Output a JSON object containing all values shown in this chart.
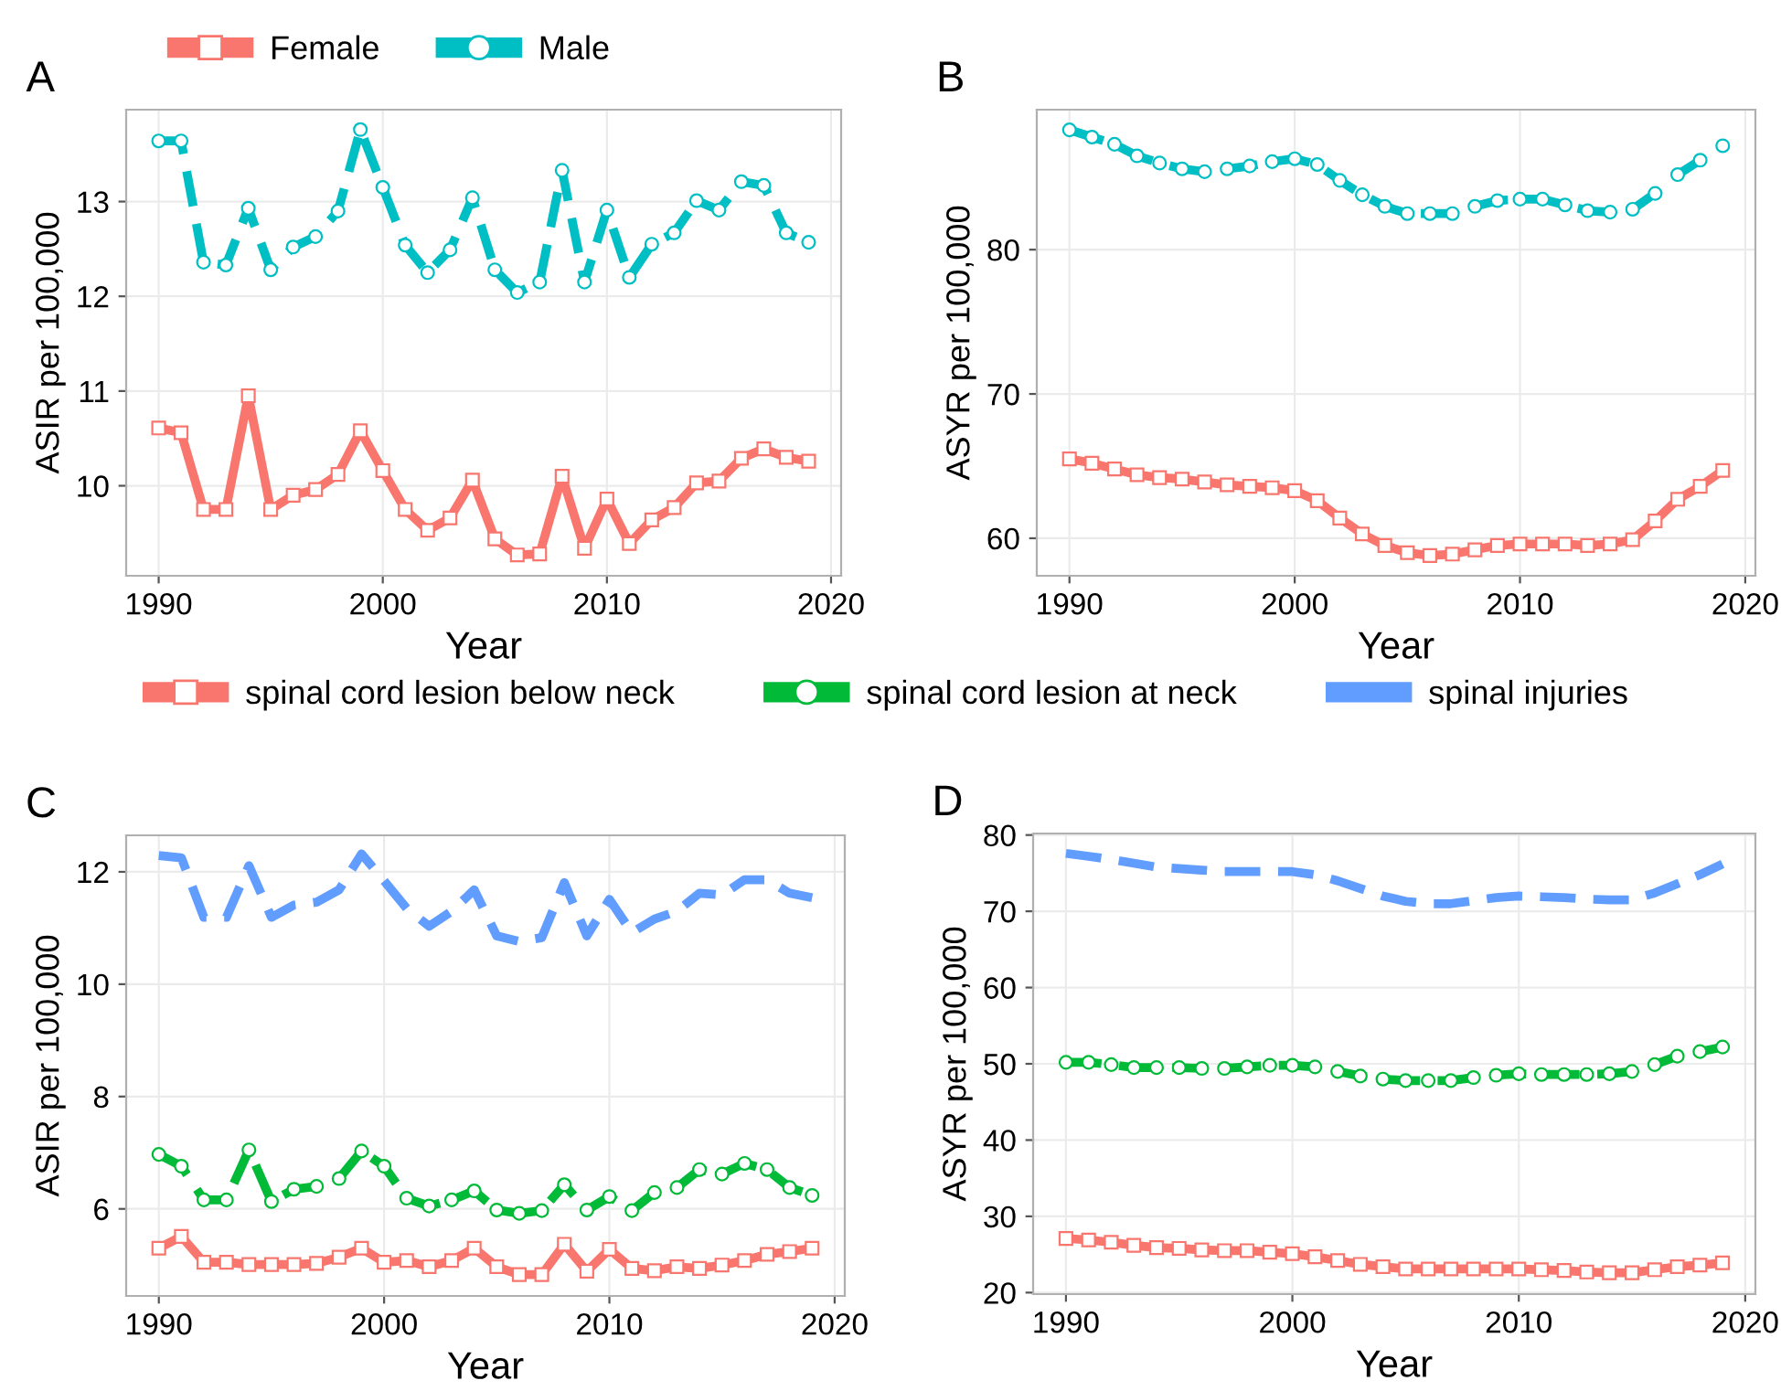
{
  "chart_data": [
    {
      "type": "line",
      "title": "A",
      "xlabel": "Year",
      "ylabel": "ASIR per 100,000",
      "xlim": [
        1988.55,
        2020.45
      ],
      "xticks": [
        1990,
        2000,
        2010,
        2020
      ],
      "ylim": [
        9.05,
        13.97
      ],
      "yticks": [
        10,
        11,
        12,
        13
      ],
      "grid": true,
      "legend": "top left",
      "x": [
        1990,
        1991,
        1992,
        1993,
        1994,
        1995,
        1996,
        1997,
        1998,
        1999,
        2000,
        2001,
        2002,
        2003,
        2004,
        2005,
        2006,
        2007,
        2008,
        2009,
        2010,
        2011,
        2012,
        2013,
        2014,
        2015,
        2016,
        2017,
        2018,
        2019
      ],
      "series": [
        {
          "name": "Female",
          "color": "#f8766d",
          "marker": "square",
          "line_style": "solid",
          "values": [
            10.61,
            10.56,
            9.75,
            9.75,
            10.95,
            9.75,
            9.9,
            9.96,
            10.12,
            10.58,
            10.16,
            9.75,
            9.53,
            9.66,
            10.06,
            9.44,
            9.27,
            9.28,
            10.1,
            9.34,
            9.86,
            9.39,
            9.64,
            9.77,
            10.03,
            10.05,
            10.29,
            10.39,
            10.3,
            10.26
          ]
        },
        {
          "name": "Male",
          "color": "#00bfc4",
          "marker": "circle",
          "line_style": "dashed",
          "values": [
            13.64,
            13.64,
            12.36,
            12.33,
            12.93,
            12.28,
            12.52,
            12.63,
            12.9,
            13.76,
            13.15,
            12.54,
            12.25,
            12.49,
            13.04,
            12.28,
            12.04,
            12.15,
            13.33,
            12.15,
            12.91,
            12.2,
            12.55,
            12.67,
            13.01,
            12.91,
            13.21,
            13.17,
            12.67,
            12.57
          ]
        }
      ]
    },
    {
      "type": "line",
      "title": "B",
      "xlabel": "Year",
      "ylabel": "ASYR per 100,000",
      "xlim": [
        1988.55,
        2020.45
      ],
      "xticks": [
        1990,
        2000,
        2010,
        2020
      ],
      "ylim": [
        57.4,
        89.7
      ],
      "yticks": [
        60,
        70,
        80
      ],
      "grid": true,
      "x": [
        1990,
        1991,
        1992,
        1993,
        1994,
        1995,
        1996,
        1997,
        1998,
        1999,
        2000,
        2001,
        2002,
        2003,
        2004,
        2005,
        2006,
        2007,
        2008,
        2009,
        2010,
        2011,
        2012,
        2013,
        2014,
        2015,
        2016,
        2017,
        2018,
        2019
      ],
      "series": [
        {
          "color": "#f8766d",
          "marker": "square",
          "line_style": "solid",
          "values": [
            65.5,
            65.2,
            64.8,
            64.4,
            64.2,
            64.1,
            63.9,
            63.7,
            63.6,
            63.5,
            63.3,
            62.6,
            61.4,
            60.3,
            59.5,
            59.0,
            58.8,
            58.9,
            59.2,
            59.5,
            59.6,
            59.6,
            59.6,
            59.5,
            59.6,
            59.9,
            61.2,
            62.7,
            63.6,
            64.7
          ]
        },
        {
          "color": "#00bfc4",
          "marker": "circle",
          "line_style": "dashed",
          "values": [
            88.3,
            87.8,
            87.3,
            86.5,
            86.0,
            85.6,
            85.4,
            85.6,
            85.8,
            86.1,
            86.3,
            85.9,
            84.8,
            83.8,
            83.0,
            82.5,
            82.5,
            82.5,
            83.0,
            83.4,
            83.5,
            83.5,
            83.1,
            82.7,
            82.6,
            82.8,
            83.9,
            85.2,
            86.2,
            87.2
          ]
        }
      ]
    },
    {
      "type": "line",
      "title": "C",
      "xlabel": "Year",
      "ylabel": "ASIR per 100,000",
      "xlim": [
        1988.55,
        2020.45
      ],
      "xticks": [
        1990,
        2000,
        2010,
        2020
      ],
      "ylim": [
        4.45,
        12.65
      ],
      "yticks": [
        6,
        8,
        10,
        12
      ],
      "grid": true,
      "legend": "top",
      "x": [
        1990,
        1991,
        1992,
        1993,
        1994,
        1995,
        1996,
        1997,
        1998,
        1999,
        2000,
        2001,
        2002,
        2003,
        2004,
        2005,
        2006,
        2007,
        2008,
        2009,
        2010,
        2011,
        2012,
        2013,
        2014,
        2015,
        2016,
        2017,
        2018,
        2019
      ],
      "series": [
        {
          "name": "spinal cord lesion below neck",
          "color": "#f8766d",
          "marker": "square",
          "line_style": "solid",
          "values": [
            5.3,
            5.51,
            5.05,
            5.05,
            5.01,
            5.01,
            5.01,
            5.03,
            5.14,
            5.3,
            5.05,
            5.08,
            4.97,
            5.08,
            5.3,
            4.97,
            4.83,
            4.83,
            5.37,
            4.89,
            5.28,
            4.94,
            4.9,
            4.97,
            4.94,
            5.0,
            5.08,
            5.19,
            5.24,
            5.3
          ]
        },
        {
          "name": "spinal cord lesion at neck",
          "color": "#00ba38",
          "marker": "circle",
          "line_style": "dashed",
          "values": [
            6.97,
            6.76,
            6.16,
            6.16,
            7.05,
            6.13,
            6.35,
            6.4,
            6.54,
            7.03,
            6.76,
            6.19,
            6.05,
            6.16,
            6.32,
            5.98,
            5.92,
            5.97,
            6.43,
            5.98,
            6.22,
            5.97,
            6.29,
            6.38,
            6.7,
            6.62,
            6.81,
            6.7,
            6.38,
            6.24
          ]
        },
        {
          "name": "spinal injuries",
          "color": "#619cff",
          "marker": "none",
          "line_style": "dashed",
          "values": [
            12.29,
            12.25,
            11.19,
            11.19,
            12.11,
            11.19,
            11.41,
            11.46,
            11.68,
            12.32,
            11.84,
            11.35,
            11.03,
            11.3,
            11.68,
            10.86,
            10.76,
            10.83,
            11.81,
            10.86,
            11.51,
            10.92,
            11.16,
            11.3,
            11.62,
            11.59,
            11.86,
            11.86,
            11.62,
            11.54
          ]
        }
      ]
    },
    {
      "type": "line",
      "title": "D",
      "xlabel": "Year",
      "ylabel": "ASYR per 100,000",
      "xlim": [
        1988.55,
        2020.45
      ],
      "xticks": [
        1990,
        2000,
        2010,
        2020
      ],
      "ylim": [
        19.8,
        80.2
      ],
      "yticks": [
        20,
        30,
        40,
        50,
        60,
        70,
        80
      ],
      "grid": true,
      "x": [
        1990,
        1991,
        1992,
        1993,
        1994,
        1995,
        1996,
        1997,
        1998,
        1999,
        2000,
        2001,
        2002,
        2003,
        2004,
        2005,
        2006,
        2007,
        2008,
        2009,
        2010,
        2011,
        2012,
        2013,
        2014,
        2015,
        2016,
        2017,
        2018,
        2019
      ],
      "series": [
        {
          "color": "#f8766d",
          "marker": "square",
          "line_style": "solid",
          "values": [
            27.1,
            26.9,
            26.6,
            26.2,
            25.9,
            25.8,
            25.6,
            25.5,
            25.5,
            25.3,
            25.1,
            24.7,
            24.2,
            23.7,
            23.4,
            23.1,
            23.1,
            23.1,
            23.1,
            23.1,
            23.1,
            23.0,
            22.9,
            22.7,
            22.6,
            22.6,
            23.0,
            23.4,
            23.6,
            23.9
          ]
        },
        {
          "color": "#00ba38",
          "marker": "circle",
          "line_style": "dashed",
          "values": [
            50.2,
            50.2,
            49.9,
            49.5,
            49.5,
            49.5,
            49.4,
            49.4,
            49.6,
            49.8,
            49.8,
            49.6,
            49.0,
            48.4,
            48.0,
            47.8,
            47.8,
            47.8,
            48.2,
            48.5,
            48.7,
            48.6,
            48.6,
            48.6,
            48.7,
            49.0,
            49.9,
            51.0,
            51.6,
            52.2
          ]
        },
        {
          "color": "#619cff",
          "marker": "none",
          "line_style": "dashed",
          "values": [
            77.6,
            77.2,
            76.8,
            76.3,
            75.8,
            75.6,
            75.4,
            75.2,
            75.2,
            75.2,
            75.2,
            74.8,
            74.0,
            73.0,
            72.0,
            71.3,
            71.0,
            71.0,
            71.4,
            71.8,
            72.0,
            71.9,
            71.8,
            71.6,
            71.5,
            71.5,
            72.4,
            73.6,
            74.8,
            76.2
          ]
        }
      ]
    }
  ]
}
